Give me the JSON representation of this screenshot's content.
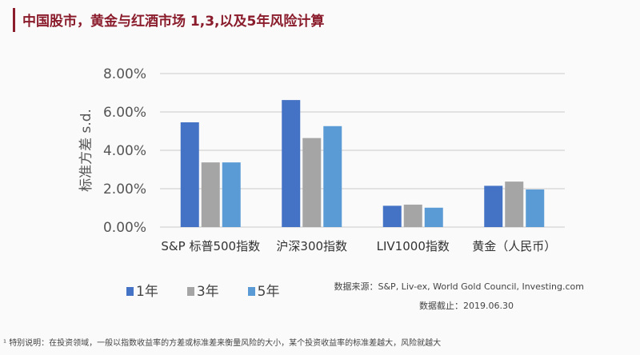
{
  "chart_data": {
    "type": "bar",
    "title": "中国股市，黄金与红酒市场 1,3,以及5年风险计算",
    "ylabel": "标准方差 s.d.",
    "xlabel": "",
    "ylim": [
      0,
      8
    ],
    "yticks": [
      "0.00%",
      "2.00%",
      "4.00%",
      "6.00%",
      "8.00%"
    ],
    "categories": [
      "S&P 标普500指数",
      "沪深300指数",
      "LIV1000指数",
      "黄金（人民币）"
    ],
    "series": [
      {
        "name": "1年",
        "color": "#4472c4",
        "values": [
          5.46,
          6.62,
          1.11,
          2.15
        ]
      },
      {
        "name": "3年",
        "color": "#a5a5a5",
        "values": [
          3.37,
          4.64,
          1.17,
          2.37
        ]
      },
      {
        "name": "5年",
        "color": "#5b9bd5",
        "values": [
          3.37,
          5.26,
          1.01,
          1.96
        ]
      }
    ],
    "legend": "bottom-left",
    "grid": true
  },
  "source": "数据来源：S&P, Liv-ex, World Gold Council, Investing.com",
  "date": "数据截止：2019.06.30",
  "note": "¹ 特别说明：在投资领域，一般以指数收益率的方差或标准差来衡量风险的大小，某个投资收益率的标准差越大，风险就越大"
}
